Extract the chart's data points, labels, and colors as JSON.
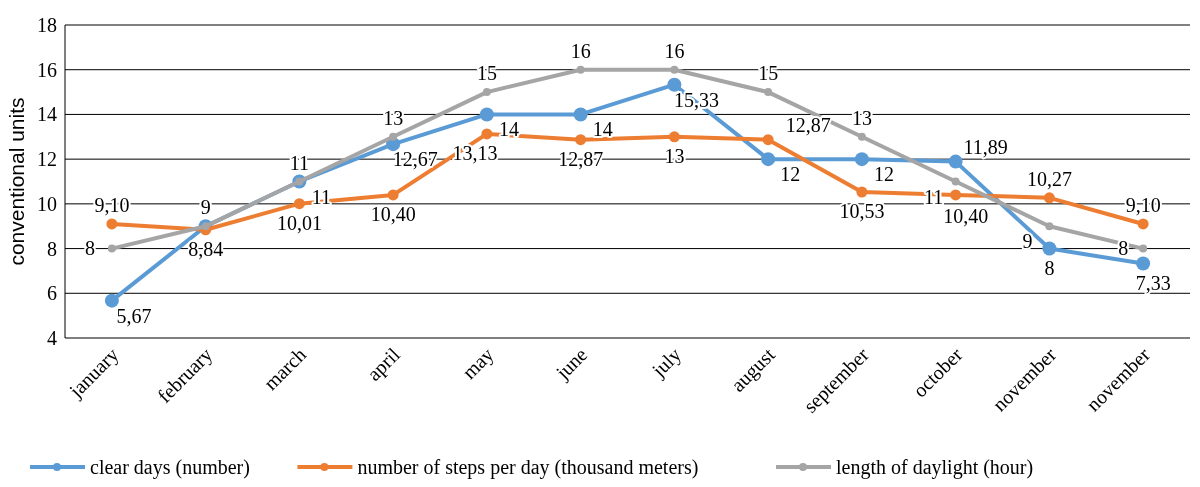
{
  "chart_data": {
    "type": "line",
    "ylabel": "conventional units",
    "categories": [
      "january",
      "february",
      "march",
      "april",
      "may",
      "june",
      "july",
      "august",
      "september",
      "october",
      "november",
      "november"
    ],
    "ylim": [
      4,
      18
    ],
    "yticks": [
      4,
      6,
      8,
      10,
      12,
      14,
      16,
      18
    ],
    "grid": "y",
    "marker": "circle",
    "legend": "bottom",
    "series": [
      {
        "name": "clear days (number)",
        "color": "#5b9bd5",
        "values": [
          5.67,
          9,
          11,
          12.67,
          14,
          14,
          15.33,
          12,
          12,
          11.89,
          8,
          7.33
        ],
        "value_labels": [
          "5,67",
          null,
          "11",
          "12,67",
          "14",
          "14",
          "15,33",
          "12",
          "12",
          "11,89",
          "8",
          "7,33"
        ]
      },
      {
        "name": "number of steps per day (thousand meters)",
        "color": "#ed7d31",
        "values": [
          9.1,
          8.84,
          10.01,
          10.4,
          13.13,
          12.87,
          13,
          12.87,
          10.53,
          10.4,
          10.27,
          9.1
        ],
        "value_labels": [
          "9,10",
          "8,84",
          "10,01",
          "10,40",
          "13,13",
          "12,87",
          "13",
          "12,87",
          "10,53",
          "10,40",
          "10,27",
          "9,10"
        ]
      },
      {
        "name": "length of daylight (hour)",
        "color": "#a5a5a5",
        "values": [
          8,
          9,
          11,
          13,
          15,
          16,
          16,
          15,
          13,
          11,
          9,
          8
        ],
        "value_labels": [
          "8",
          "9",
          "11",
          "13",
          "15",
          "16",
          "16",
          "15",
          "13",
          "11",
          "9",
          "8"
        ]
      }
    ]
  }
}
